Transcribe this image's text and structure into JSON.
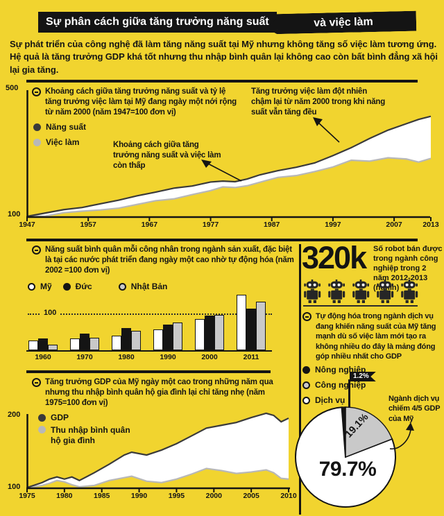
{
  "theme": {
    "background": "#F1D42F",
    "ink": "#141414",
    "white": "#ffffff",
    "gray": "#c9c9c9",
    "line_dark": "#3a3a3a",
    "line_gray": "#b8b8b8"
  },
  "header": {
    "title_part1": "Sự phân cách giữa tăng trưởng năng suất",
    "title_part2": "và việc làm",
    "intro": "Sự phát triển của công nghệ đã làm tăng năng suất tại Mỹ nhưng không tăng số việc làm tương ứng. Hệ quả là tăng trưởng GDP khá tốt nhưng thu nhập bình quân lại không cao còn bất bình đẳng xã hội lại gia tăng."
  },
  "robots": {
    "count": 5,
    "stat": "320k",
    "caption": "Số robot bán được trong ngành công nghiệp trong 2 năm 2012-2013 (nghìn)"
  },
  "chart_data": [
    {
      "type": "area",
      "title": "Khoảng cách giữa tăng trưởng năng suất và tỷ lệ tăng trưởng việc làm tại Mỹ đang ngày một nới rộng từ năm 2000 (năm 1947=100 đơn vị)",
      "legend": [
        "Năng suất",
        "Việc làm"
      ],
      "colors": [
        "#3a3a3a",
        "#b8b8b8"
      ],
      "ylim": [
        100,
        500
      ],
      "y_ticks": [
        "500",
        "100"
      ],
      "x_ticks": [
        1947,
        1957,
        1967,
        1977,
        1987,
        1997,
        2007,
        2013
      ],
      "x": [
        1947,
        1950,
        1953,
        1956,
        1959,
        1962,
        1965,
        1968,
        1971,
        1974,
        1977,
        1979,
        1981,
        1983,
        1985,
        1988,
        1991,
        1994,
        1997,
        2000,
        2003,
        2006,
        2009,
        2011,
        2013
      ],
      "series": [
        {
          "name": "Năng suất",
          "values": [
            100,
            111,
            122,
            129,
            141,
            153,
            167,
            179,
            192,
            199,
            212,
            215,
            213,
            222,
            235,
            249,
            260,
            274,
            298,
            324,
            354,
            381,
            402,
            416,
            426
          ]
        },
        {
          "name": "Việc làm",
          "values": [
            100,
            101,
            112,
            117,
            121,
            127,
            139,
            151,
            157,
            171,
            184,
            196,
            194,
            200,
            211,
            227,
            233,
            246,
            261,
            283,
            280,
            291,
            287,
            277,
            289
          ]
        }
      ],
      "annotations": [
        "Khoảng cách giữa tăng trưởng năng suất và việc làm còn thấp",
        "Tăng trưởng việc làm đột nhiên chậm lại từ năm 2000 trong khi năng suất vẫn tăng đều"
      ]
    },
    {
      "type": "bar",
      "title": "Năng suất bình quân mỗi công nhân trong ngành sản xuất, đặc biệt là tại các nước phát triển đang ngày một cao nhờ tự động hóa (năm 2002 =100 đơn vị)",
      "categories": [
        "1960",
        "1970",
        "1980",
        "1990",
        "2000",
        "2011"
      ],
      "series": [
        {
          "name": "Mỹ",
          "color": "#ffffff",
          "values": [
            26,
            32,
            41,
            58,
            87,
            153
          ]
        },
        {
          "name": "Đức",
          "color": "#141414",
          "values": [
            32,
            47,
            61,
            72,
            97,
            116
          ]
        },
        {
          "name": "Nhật Bản",
          "color": "#c9c9c9",
          "values": [
            15,
            34,
            53,
            76,
            98,
            135
          ]
        }
      ],
      "gridline": 100,
      "gridline_label": "100"
    },
    {
      "type": "area",
      "title": "Tăng trưởng GDP của Mỹ ngày một cao trong những năm qua nhưng thu nhập bình quân hộ gia đình lại chỉ tăng nhẹ (năm 1975=100 đơn vị)",
      "legend": [
        "GDP",
        "Thu nhập bình quân hộ gia đình"
      ],
      "colors": [
        "#3a3a3a",
        "#b8b8b8"
      ],
      "ylim": [
        100,
        200
      ],
      "y_ticks": [
        "200",
        "100"
      ],
      "x_ticks": [
        1975,
        1980,
        1985,
        1990,
        1995,
        2000,
        2005,
        2010
      ],
      "x": [
        1975,
        1977,
        1978,
        1979,
        1980,
        1981,
        1982,
        1984,
        1986,
        1988,
        1989,
        1991,
        1993,
        1995,
        1997,
        1999,
        2001,
        2003,
        2005,
        2007,
        2008,
        2009,
        2010
      ],
      "series": [
        {
          "name": "GDP",
          "values": [
            100,
            107,
            112,
            115,
            112,
            115,
            110,
            121,
            133,
            146,
            150,
            146,
            153,
            162,
            173,
            184,
            188,
            192,
            199,
            205,
            202,
            193,
            198
          ]
        },
        {
          "name": "Thu nhập bình quân hộ gia đình",
          "values": [
            100,
            103,
            106,
            110,
            108,
            104,
            101,
            103,
            110,
            114,
            116,
            109,
            107,
            112,
            119,
            127,
            124,
            120,
            122,
            125,
            121,
            113,
            112
          ]
        }
      ]
    },
    {
      "type": "pie",
      "title": "Tự động hóa trong ngành dịch vụ đang khiến năng suất của Mỹ tăng mạnh dù số việc làm mới tạo ra không nhiều do đây là mảng đóng góp nhiều nhất cho GDP",
      "labels": [
        "Nông nghiệp",
        "Công nghiệp",
        "Dịch vụ"
      ],
      "values": [
        1.2,
        19.1,
        79.7
      ],
      "value_labels": [
        "1.2%",
        "19.1%",
        "79.7%"
      ],
      "colors": [
        "#141414",
        "#c9c9c9",
        "#ffffff"
      ],
      "annotation": "Ngành dịch vụ chiếm 4/5 GDP của Mỹ"
    }
  ]
}
